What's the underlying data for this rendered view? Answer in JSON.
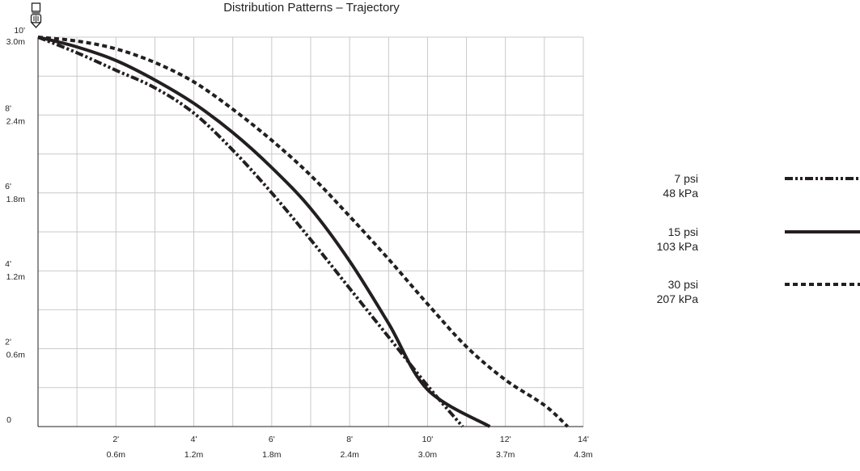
{
  "chart_data": {
    "type": "line",
    "title": "Distribution Patterns – Trajectory",
    "xlabel": "",
    "ylabel": "",
    "xlim": [
      0,
      14
    ],
    "ylim": [
      0,
      10
    ],
    "grid": true,
    "legend_position": "right",
    "x_ticks": [
      {
        "value": 2,
        "ft": "2'",
        "m": "0.6m"
      },
      {
        "value": 4,
        "ft": "4'",
        "m": "1.2m"
      },
      {
        "value": 6,
        "ft": "6'",
        "m": "1.8m"
      },
      {
        "value": 8,
        "ft": "8'",
        "m": "2.4m"
      },
      {
        "value": 10,
        "ft": "10'",
        "m": "3.0m"
      },
      {
        "value": 12,
        "ft": "12'",
        "m": "3.7m"
      },
      {
        "value": 14,
        "ft": "14'",
        "m": "4.3m"
      }
    ],
    "y_ticks": [
      {
        "value": 10,
        "ft": "10'",
        "m": "3.0m"
      },
      {
        "value": 8,
        "ft": "8'",
        "m": "2.4m"
      },
      {
        "value": 6,
        "ft": "6'",
        "m": "1.8m"
      },
      {
        "value": 4,
        "ft": "4'",
        "m": "1.2m"
      },
      {
        "value": 2,
        "ft": "2'",
        "m": "0.6m"
      },
      {
        "value": 0,
        "ft": "0",
        "m": ""
      }
    ],
    "series": [
      {
        "name": "7 psi",
        "name_metric": "48 kPa",
        "style": "dash-dot-dot",
        "color": "#231f20",
        "points": [
          [
            0,
            10
          ],
          [
            1,
            9.6
          ],
          [
            2,
            9.15
          ],
          [
            3,
            8.7
          ],
          [
            4,
            8.05
          ],
          [
            5,
            7.1
          ],
          [
            6,
            6.0
          ],
          [
            7,
            4.8
          ],
          [
            8,
            3.55
          ],
          [
            9,
            2.3
          ],
          [
            10,
            1.05
          ],
          [
            10.9,
            0
          ]
        ]
      },
      {
        "name": "15 psi",
        "name_metric": "103 kPa",
        "style": "solid",
        "color": "#231f20",
        "points": [
          [
            0,
            10
          ],
          [
            1,
            9.75
          ],
          [
            2,
            9.4
          ],
          [
            3,
            8.9
          ],
          [
            4,
            8.3
          ],
          [
            5,
            7.55
          ],
          [
            6,
            6.65
          ],
          [
            7,
            5.6
          ],
          [
            8,
            4.25
          ],
          [
            9,
            2.65
          ],
          [
            10,
            0.95
          ],
          [
            11.6,
            0
          ]
        ]
      },
      {
        "name": "30 psi",
        "name_metric": "207 kPa",
        "style": "dashed",
        "color": "#231f20",
        "points": [
          [
            0,
            10
          ],
          [
            1,
            9.9
          ],
          [
            2,
            9.7
          ],
          [
            3,
            9.35
          ],
          [
            4,
            8.85
          ],
          [
            5,
            8.15
          ],
          [
            6,
            7.35
          ],
          [
            7,
            6.45
          ],
          [
            8,
            5.4
          ],
          [
            9,
            4.3
          ],
          [
            10,
            3.15
          ],
          [
            11,
            2.05
          ],
          [
            12,
            1.2
          ],
          [
            13,
            0.55
          ],
          [
            13.6,
            0
          ]
        ]
      }
    ]
  },
  "icons": {
    "sprinkler": "sprinkler-head-icon"
  }
}
